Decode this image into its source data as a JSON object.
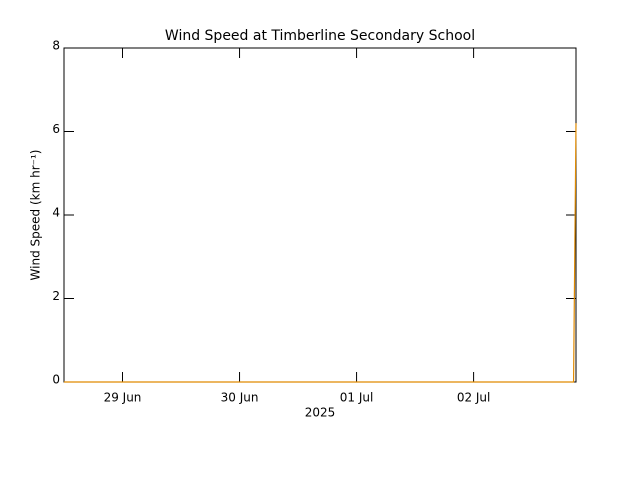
{
  "chart_data": {
    "type": "line",
    "title": "Wind Speed at Timberline Secondary School",
    "ylabel": "Wind Speed (km hr⁻¹)",
    "xlabel": "2025",
    "x": [
      "2025-06-28T12:00",
      "2025-07-02T20:30",
      "2025-07-02T21:00"
    ],
    "series": [
      {
        "name": "Wind Speed",
        "color": "#e08a00",
        "values": [
          0,
          0,
          6.2
        ]
      }
    ],
    "xlim": [
      "2025-06-28T12:00",
      "2025-07-02T21:00"
    ],
    "xticks": [
      {
        "value": "2025-06-29",
        "label": "29 Jun"
      },
      {
        "value": "2025-06-30",
        "label": "30 Jun"
      },
      {
        "value": "2025-07-01",
        "label": "01 Jul"
      },
      {
        "value": "2025-07-02",
        "label": "02 Jul"
      }
    ],
    "ylim": [
      0,
      8
    ],
    "yticks": [
      0,
      2,
      4,
      6,
      8
    ],
    "grid": false
  }
}
